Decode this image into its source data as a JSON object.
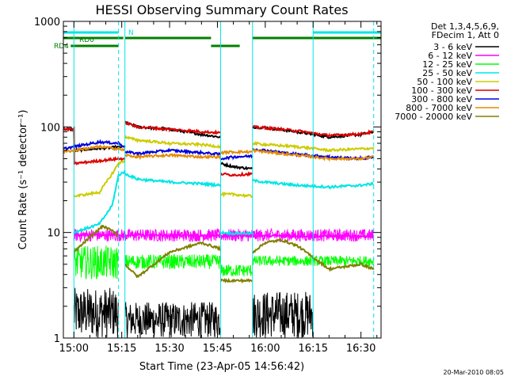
{
  "chart_data": {
    "type": "line",
    "title": "HESSI Observing Summary Count Rates",
    "xlabel": "Start Time (23-Apr-05 14:56:42)",
    "ylabel": "Count Rate (s⁻¹ detector⁻¹)",
    "y_scale": "log",
    "ylim": [
      1,
      1000
    ],
    "x_ticks": [
      "15:00",
      "15:15",
      "15:30",
      "15:45",
      "16:00",
      "16:15",
      "16:30"
    ],
    "x_tick_minutes": [
      0,
      15,
      30,
      45,
      60,
      75,
      90
    ],
    "y_ticks": [
      "1",
      "10",
      "100",
      "1000"
    ],
    "y_tick_values": [
      1,
      10,
      100,
      1000
    ],
    "xlim_minutes": [
      -3.3,
      96.3
    ],
    "legend_header": [
      "Det 1,3,4,5,6,9,",
      "FDecim 1, Att 0"
    ],
    "timestamp": "20-Mar-2010 08:05",
    "flags": [
      {
        "label": "N",
        "color": "#00e5e5",
        "segments": [
          [
            -3.3,
            14
          ],
          [
            75,
            96.3
          ]
        ]
      },
      {
        "label": "RD0",
        "color": "#008000",
        "segments": [
          [
            -3.3,
            15.5
          ],
          [
            16,
            43
          ],
          [
            56,
            96.3
          ]
        ]
      },
      {
        "label": "RD4",
        "color": "#008000",
        "segments": [
          [
            -1,
            14
          ],
          [
            43,
            52
          ]
        ]
      }
    ],
    "vlines": [
      {
        "x": 0,
        "style": "solid",
        "color": "#00e5e5"
      },
      {
        "x": 14,
        "style": "dashed",
        "color": "#00e5e5"
      },
      {
        "x": 16,
        "style": "solid",
        "color": "#00e5e5"
      },
      {
        "x": 46,
        "style": "solid",
        "color": "#00e5e5"
      },
      {
        "x": 56,
        "style": "solid",
        "color": "#00e5e5"
      },
      {
        "x": 75,
        "style": "solid",
        "color": "#00e5e5"
      },
      {
        "x": 94,
        "style": "dashed",
        "color": "#00e5e5"
      }
    ],
    "series": [
      {
        "name": "3 - 6 keV",
        "color": "#000000",
        "segments": [
          {
            "x": [
              -3.3,
              0,
              0.1,
              16
            ],
            "y": [
              95,
              95,
              60,
              65
            ]
          },
          {
            "x": [
              16,
              20,
              30,
              40,
              46
            ],
            "y": [
              110,
              100,
              95,
              85,
              80
            ]
          },
          {
            "x": [
              46,
              50,
              56
            ],
            "y": [
              45,
              42,
              40
            ]
          },
          {
            "x": [
              56,
              60,
              70,
              80,
              90,
              94
            ],
            "y": [
              100,
              98,
              90,
              80,
              85,
              90
            ]
          }
        ],
        "noise": [
          {
            "x0": 0,
            "x1": 14,
            "y0": 1.0,
            "y1": 3.0
          },
          {
            "x0": 16,
            "x1": 46,
            "y0": 1.0,
            "y1": 2.2
          },
          {
            "x0": 56,
            "x1": 75,
            "y0": 1.0,
            "y1": 2.8
          }
        ]
      },
      {
        "name": "6 - 12 keV",
        "color": "#ff00ff",
        "segments": [
          {
            "x": [
              0,
              94
            ],
            "y": [
              9.5,
              9.2
            ]
          }
        ],
        "noise": [
          {
            "x0": 0,
            "x1": 94,
            "y0": 8.2,
            "y1": 10.8
          }
        ]
      },
      {
        "name": "12 - 25 keV",
        "color": "#00ff00",
        "segments": [],
        "noise": [
          {
            "x0": 0,
            "x1": 14,
            "y0": 3.6,
            "y1": 7.5
          },
          {
            "x0": 16,
            "x1": 46,
            "y0": 4.5,
            "y1": 6.2
          },
          {
            "x0": 46,
            "x1": 56,
            "y0": 3.8,
            "y1": 5.0
          },
          {
            "x0": 56,
            "x1": 94,
            "y0": 4.8,
            "y1": 6.0
          }
        ]
      },
      {
        "name": "25 - 50 keV",
        "color": "#00e5e5",
        "segments": [
          {
            "x": [
              0,
              8,
              12,
              14,
              16
            ],
            "y": [
              10,
              12,
              18,
              35,
              38
            ]
          },
          {
            "x": [
              16,
              20,
              30,
              40,
              46
            ],
            "y": [
              36,
              32,
              30,
              29,
              28
            ]
          },
          {
            "x": [
              46,
              50,
              56
            ],
            "y": [
              10,
              9.8,
              9.8
            ]
          },
          {
            "x": [
              56,
              60,
              70,
              80,
              90,
              94
            ],
            "y": [
              31,
              30,
              28,
              27,
              28,
              29
            ]
          }
        ]
      },
      {
        "name": "50 - 100 keV",
        "color": "#cccc00",
        "segments": [
          {
            "x": [
              0,
              8,
              12,
              14,
              16
            ],
            "y": [
              22,
              24,
              36,
              45,
              48
            ]
          },
          {
            "x": [
              16,
              20,
              30,
              40,
              46
            ],
            "y": [
              80,
              75,
              70,
              68,
              65
            ]
          },
          {
            "x": [
              46,
              50,
              56
            ],
            "y": [
              23,
              23,
              22
            ]
          },
          {
            "x": [
              56,
              60,
              70,
              80,
              90,
              94
            ],
            "y": [
              70,
              68,
              65,
              60,
              62,
              63
            ]
          }
        ]
      },
      {
        "name": "100 - 300 keV",
        "color": "#dd0000",
        "segments": [
          {
            "x": [
              -3.3,
              0,
              0.1,
              14,
              16
            ],
            "y": [
              95,
              95,
              45,
              50,
              50
            ]
          },
          {
            "x": [
              16,
              20,
              30,
              40,
              46
            ],
            "y": [
              110,
              100,
              95,
              90,
              88
            ]
          },
          {
            "x": [
              46,
              50,
              56
            ],
            "y": [
              36,
              35,
              36
            ]
          },
          {
            "x": [
              56,
              60,
              70,
              80,
              90,
              94
            ],
            "y": [
              100,
              98,
              92,
              83,
              86,
              90
            ]
          }
        ]
      },
      {
        "name": "300 - 800 keV",
        "color": "#0000dd",
        "segments": [
          {
            "x": [
              -3.3,
              0,
              8,
              14,
              16
            ],
            "y": [
              62,
              65,
              72,
              70,
              65
            ]
          },
          {
            "x": [
              16,
              20,
              30,
              40,
              46
            ],
            "y": [
              58,
              56,
              60,
              57,
              55
            ]
          },
          {
            "x": [
              46,
              50,
              56
            ],
            "y": [
              50,
              52,
              53
            ]
          },
          {
            "x": [
              56,
              60,
              70,
              80,
              90,
              94
            ],
            "y": [
              62,
              60,
              55,
              52,
              50,
              52
            ]
          }
        ]
      },
      {
        "name": "800 - 7000 keV",
        "color": "#e68a00",
        "segments": [
          {
            "x": [
              -3.3,
              0,
              8,
              14,
              16
            ],
            "y": [
              58,
              60,
              65,
              62,
              60
            ]
          },
          {
            "x": [
              16,
              20,
              30,
              40,
              46
            ],
            "y": [
              54,
              52,
              54,
              52,
              52
            ]
          },
          {
            "x": [
              46,
              50,
              56
            ],
            "y": [
              57,
              58,
              58
            ]
          },
          {
            "x": [
              56,
              60,
              70,
              80,
              90,
              94
            ],
            "y": [
              60,
              58,
              54,
              50,
              50,
              52
            ]
          }
        ]
      },
      {
        "name": "7000 - 20000 keV",
        "color": "#808000",
        "segments": [
          {
            "x": [
              0,
              5,
              9,
              13,
              14
            ],
            "y": [
              6.5,
              9,
              11.5,
              10,
              9
            ]
          },
          {
            "x": [
              16,
              20,
              30,
              40,
              46
            ],
            "y": [
              5,
              3.8,
              6.5,
              8,
              7
            ]
          },
          {
            "x": [
              46,
              50,
              56
            ],
            "y": [
              3.5,
              3.5,
              3.5
            ]
          },
          {
            "x": [
              56,
              60,
              65,
              70,
              80,
              90,
              94
            ],
            "y": [
              6.5,
              8,
              8.5,
              7.5,
              4.5,
              5,
              4.5
            ]
          }
        ]
      }
    ]
  }
}
